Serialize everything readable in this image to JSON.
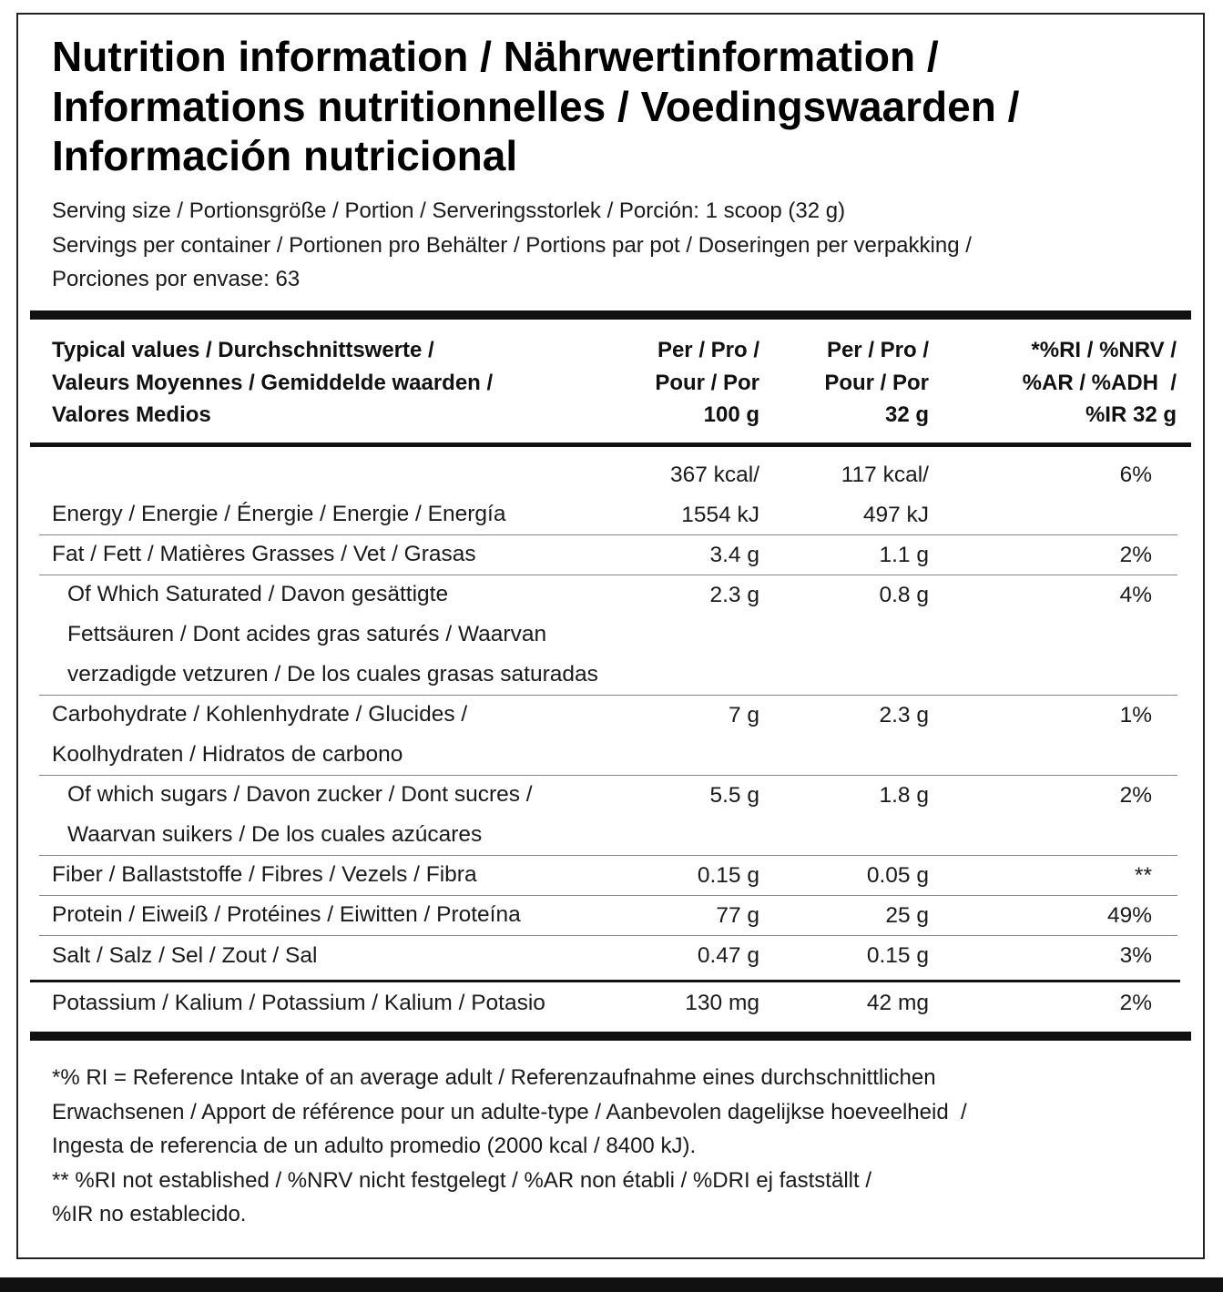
{
  "title": [
    "Nutrition information / Nährwertinformation /",
    "Informations nutritionnelles / Voedingswaarden /",
    "Información nutricional"
  ],
  "serving": [
    "Serving size / Portionsgröße / Portion / Serveringsstorlek / Porción: 1 scoop (32 g)",
    "Servings per container / Portionen pro Behälter / Portions par pot / Doseringen per verpakking /",
    "Porciones por envase: 63"
  ],
  "table": {
    "header": {
      "label": [
        "Typical values / Durchschnittswerte /",
        "Valeurs Moyennes / Gemiddelde waarden /",
        "Valores Medios"
      ],
      "per100g": [
        "Per / Pro /",
        "Pour / Por",
        "100 g"
      ],
      "per32g": [
        "Per / Pro /",
        "Pour / Por",
        "32 g"
      ],
      "ri": [
        "*%RI / %NRV /",
        "%AR / %ADH  /",
        "%IR 32 g"
      ]
    },
    "rows": [
      {
        "label": [
          "Energy / Energie / Énergie / Energie / Energía"
        ],
        "per100g": [
          "367 kcal/",
          "1554 kJ"
        ],
        "per32g": [
          "117 kcal/",
          "497 kJ"
        ],
        "ri": [
          "6%"
        ],
        "indent": false
      },
      {
        "label": [
          "Fat / Fett / Matières Grasses / Vet / Grasas"
        ],
        "per100g": [
          "3.4 g"
        ],
        "per32g": [
          "1.1 g"
        ],
        "ri": [
          "2%"
        ],
        "indent": false
      },
      {
        "label": [
          "Of Which Saturated / Davon gesättigte",
          "Fettsäuren / Dont acides gras saturés / Waarvan",
          "verzadigde vetzuren / De los cuales grasas saturadas"
        ],
        "per100g": [
          "2.3 g"
        ],
        "per32g": [
          "0.8 g"
        ],
        "ri": [
          "4%"
        ],
        "indent": true
      },
      {
        "label": [
          "Carbohydrate / Kohlenhydrate / Glucides /",
          "Koolhydraten / Hidratos de carbono"
        ],
        "per100g": [
          "7 g"
        ],
        "per32g": [
          "2.3 g"
        ],
        "ri": [
          "1%"
        ],
        "indent": false
      },
      {
        "label": [
          "Of which sugars / Davon zucker / Dont sucres /",
          "Waarvan suikers / De los cuales azúcares"
        ],
        "per100g": [
          "5.5 g"
        ],
        "per32g": [
          "1.8 g"
        ],
        "ri": [
          "2%"
        ],
        "indent": true
      },
      {
        "label": [
          "Fiber / Ballaststoffe / Fibres / Vezels / Fibra"
        ],
        "per100g": [
          "0.15 g"
        ],
        "per32g": [
          "0.05 g"
        ],
        "ri": [
          "**"
        ],
        "indent": false
      },
      {
        "label": [
          "Protein / Eiweiß / Protéines / Eiwitten / Proteína"
        ],
        "per100g": [
          "77 g"
        ],
        "per32g": [
          "25 g"
        ],
        "ri": [
          "49%"
        ],
        "indent": false
      },
      {
        "label": [
          "Salt / Salz / Sel / Zout / Sal"
        ],
        "per100g": [
          "0.47 g"
        ],
        "per32g": [
          "0.15 g"
        ],
        "ri": [
          "3%"
        ],
        "indent": false
      }
    ],
    "minerals": [
      {
        "label": [
          "Potassium / Kalium / Potassium / Kalium / Potasio"
        ],
        "per100g": [
          "130 mg"
        ],
        "per32g": [
          "42 mg"
        ],
        "ri": [
          "2%"
        ],
        "indent": false
      }
    ]
  },
  "footnotes": [
    "*% RI = Reference Intake of an average adult / Referenzaufnahme eines durchschnittlichen",
    "Erwachsenen / Apport de référence pour un adulte-type / Aanbevolen dagelijkse hoeveelheid  /",
    "Ingesta de referencia de un adulto promedio (2000 kcal / 8400 kJ).",
    "** %RI not established / %NRV nicht festgelegt / %AR non établi / %DRI ej fastställt /",
    "%IR no establecido."
  ]
}
